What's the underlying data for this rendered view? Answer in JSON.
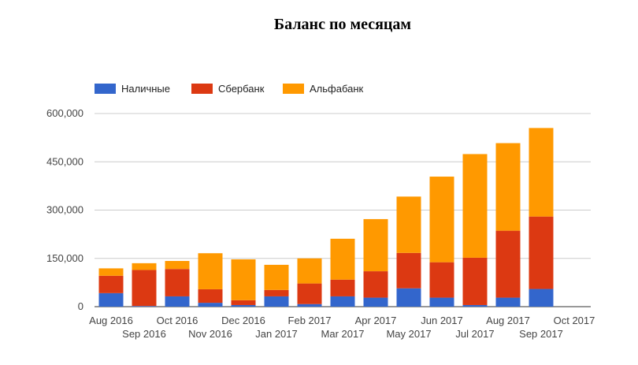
{
  "chart_data": {
    "type": "bar",
    "stacked": true,
    "title": "Баланс по месяцам",
    "xlabel": "",
    "ylabel": "",
    "categories": [
      "Aug 2016",
      "Sep 2016",
      "Oct 2016",
      "Nov 2016",
      "Dec 2016",
      "Jan 2017",
      "Feb 2017",
      "Mar 2017",
      "Apr 2017",
      "May 2017",
      "Jun 2017",
      "Jul 2017",
      "Aug 2017",
      "Sep 2017",
      "Oct 2017"
    ],
    "ylim": [
      0,
      600000
    ],
    "yticks": [
      0,
      150000,
      300000,
      450000,
      600000
    ],
    "ytick_labels": [
      "0",
      "150,000",
      "300,000",
      "450,000",
      "600,000"
    ],
    "legend_position": "top-left",
    "grid": true,
    "series": [
      {
        "name": "Наличные",
        "color": "#3366cc",
        "values": [
          42000,
          2000,
          32000,
          12000,
          5000,
          32000,
          8000,
          32000,
          28000,
          57000,
          28000,
          5000,
          28000,
          55000,
          0
        ]
      },
      {
        "name": "Сбербанк",
        "color": "#dc3912",
        "values": [
          54000,
          112000,
          85000,
          42000,
          15000,
          20000,
          64000,
          52000,
          82000,
          110000,
          110000,
          147000,
          208000,
          225000,
          0
        ]
      },
      {
        "name": "Альфабанк",
        "color": "#ff9900",
        "values": [
          23000,
          21000,
          25000,
          112000,
          127000,
          78000,
          78000,
          127000,
          162000,
          175000,
          266000,
          322000,
          272000,
          275000,
          0
        ]
      }
    ]
  }
}
